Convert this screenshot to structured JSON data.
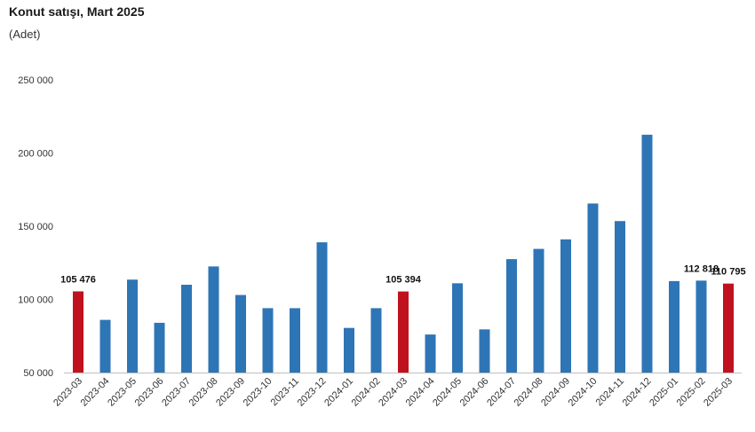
{
  "chart_data": {
    "type": "bar",
    "title": "Konut satışı, Mart 2025",
    "subtitle": "(Adet)",
    "xlabel": "",
    "ylabel": "",
    "ylim": [
      50000,
      250000
    ],
    "yticks": [
      50000,
      100000,
      150000,
      200000,
      250000
    ],
    "ytick_labels": [
      "50 000",
      "100 000",
      "150 000",
      "200 000",
      "250 000"
    ],
    "grid": false,
    "legend": "none",
    "colors": {
      "default": "#2e75b6",
      "highlight": "#c0111f"
    },
    "categories": [
      "2023-03",
      "2023-04",
      "2023-05",
      "2023-06",
      "2023-07",
      "2023-08",
      "2023-09",
      "2023-10",
      "2023-11",
      "2023-12",
      "2024-01",
      "2024-02",
      "2024-03",
      "2024-04",
      "2024-05",
      "2024-06",
      "2024-07",
      "2024-08",
      "2024-09",
      "2024-10",
      "2024-11",
      "2024-12",
      "2025-01",
      "2025-02",
      "2025-03"
    ],
    "values": [
      105476,
      86000,
      113500,
      84000,
      110000,
      122500,
      103000,
      94000,
      94000,
      139000,
      80500,
      94000,
      105394,
      76000,
      111000,
      79500,
      127500,
      134500,
      141000,
      165500,
      153500,
      212500,
      112500,
      112818,
      110795
    ],
    "highlight": [
      true,
      false,
      false,
      false,
      false,
      false,
      false,
      false,
      false,
      false,
      false,
      false,
      true,
      false,
      false,
      false,
      false,
      false,
      false,
      false,
      false,
      false,
      false,
      false,
      true
    ],
    "data_labels": [
      {
        "index": 0,
        "text": "105 476"
      },
      {
        "index": 12,
        "text": "105 394"
      },
      {
        "index": 23,
        "text": "112 818"
      },
      {
        "index": 24,
        "text": "110 795"
      }
    ]
  }
}
